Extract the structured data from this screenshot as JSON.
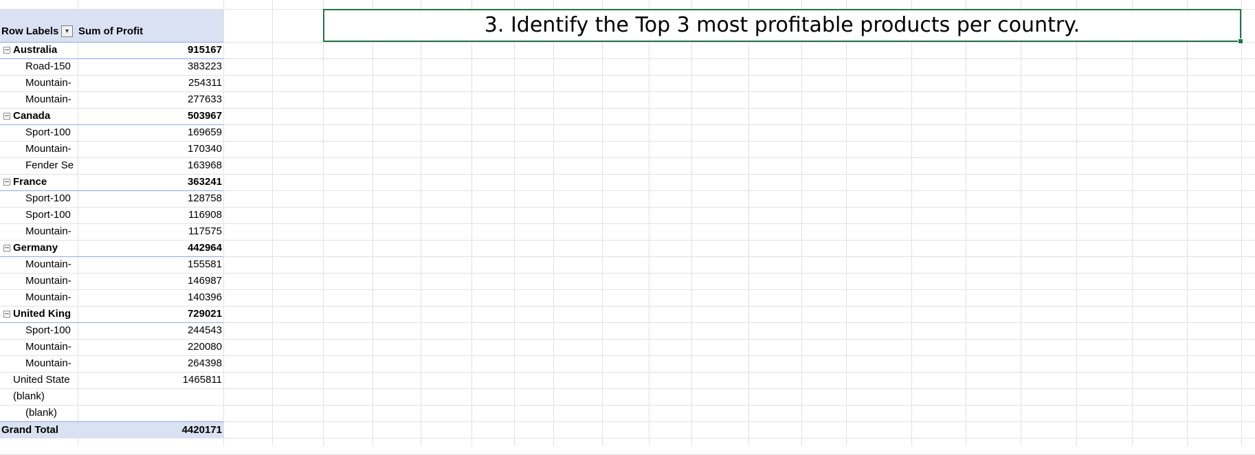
{
  "sheet": {
    "title_text": "3. Identify the Top 3 most profitable products per country."
  },
  "pivot": {
    "row_labels_header": "Row Labels",
    "value_header": "Sum of Profit",
    "filter_icon": "filter-dropdown-icon",
    "rows": [
      {
        "kind": "country",
        "label": "Australia",
        "value": "915167"
      },
      {
        "kind": "product",
        "label": "Road-150",
        "value": "383223"
      },
      {
        "kind": "product",
        "label": "Mountain-",
        "value": "254311"
      },
      {
        "kind": "product",
        "label": "Mountain-",
        "value": "277633"
      },
      {
        "kind": "country",
        "label": "Canada",
        "value": "503967"
      },
      {
        "kind": "product",
        "label": "Sport-100",
        "value": "169659"
      },
      {
        "kind": "product",
        "label": "Mountain-",
        "value": "170340"
      },
      {
        "kind": "product",
        "label": "Fender Se",
        "value": "163968"
      },
      {
        "kind": "country",
        "label": "France",
        "value": "363241"
      },
      {
        "kind": "product",
        "label": "Sport-100",
        "value": "128758"
      },
      {
        "kind": "product",
        "label": "Sport-100",
        "value": "116908"
      },
      {
        "kind": "product",
        "label": "Mountain-",
        "value": "117575"
      },
      {
        "kind": "country",
        "label": "Germany",
        "value": "442964"
      },
      {
        "kind": "product",
        "label": "Mountain-",
        "value": "155581"
      },
      {
        "kind": "product",
        "label": "Mountain-",
        "value": "146987"
      },
      {
        "kind": "product",
        "label": "Mountain-",
        "value": "140396"
      },
      {
        "kind": "country",
        "label": "United King",
        "value": "729021"
      },
      {
        "kind": "product",
        "label": "Sport-100",
        "value": "244543"
      },
      {
        "kind": "product",
        "label": "Mountain-",
        "value": "220080"
      },
      {
        "kind": "product",
        "label": "Mountain-",
        "value": "264398"
      },
      {
        "kind": "top",
        "label": "United State",
        "value": "1465811"
      },
      {
        "kind": "top",
        "label": "(blank)",
        "value": ""
      },
      {
        "kind": "child",
        "label": "(blank)",
        "value": ""
      }
    ],
    "grand_total_label": "Grand Total",
    "grand_total_value": "4420171"
  },
  "colors": {
    "pivot_header_bg": "#d9e1f2",
    "pivot_border": "#8ea9db",
    "selection_border": "#217346",
    "gridline": "#e1e1e1"
  }
}
